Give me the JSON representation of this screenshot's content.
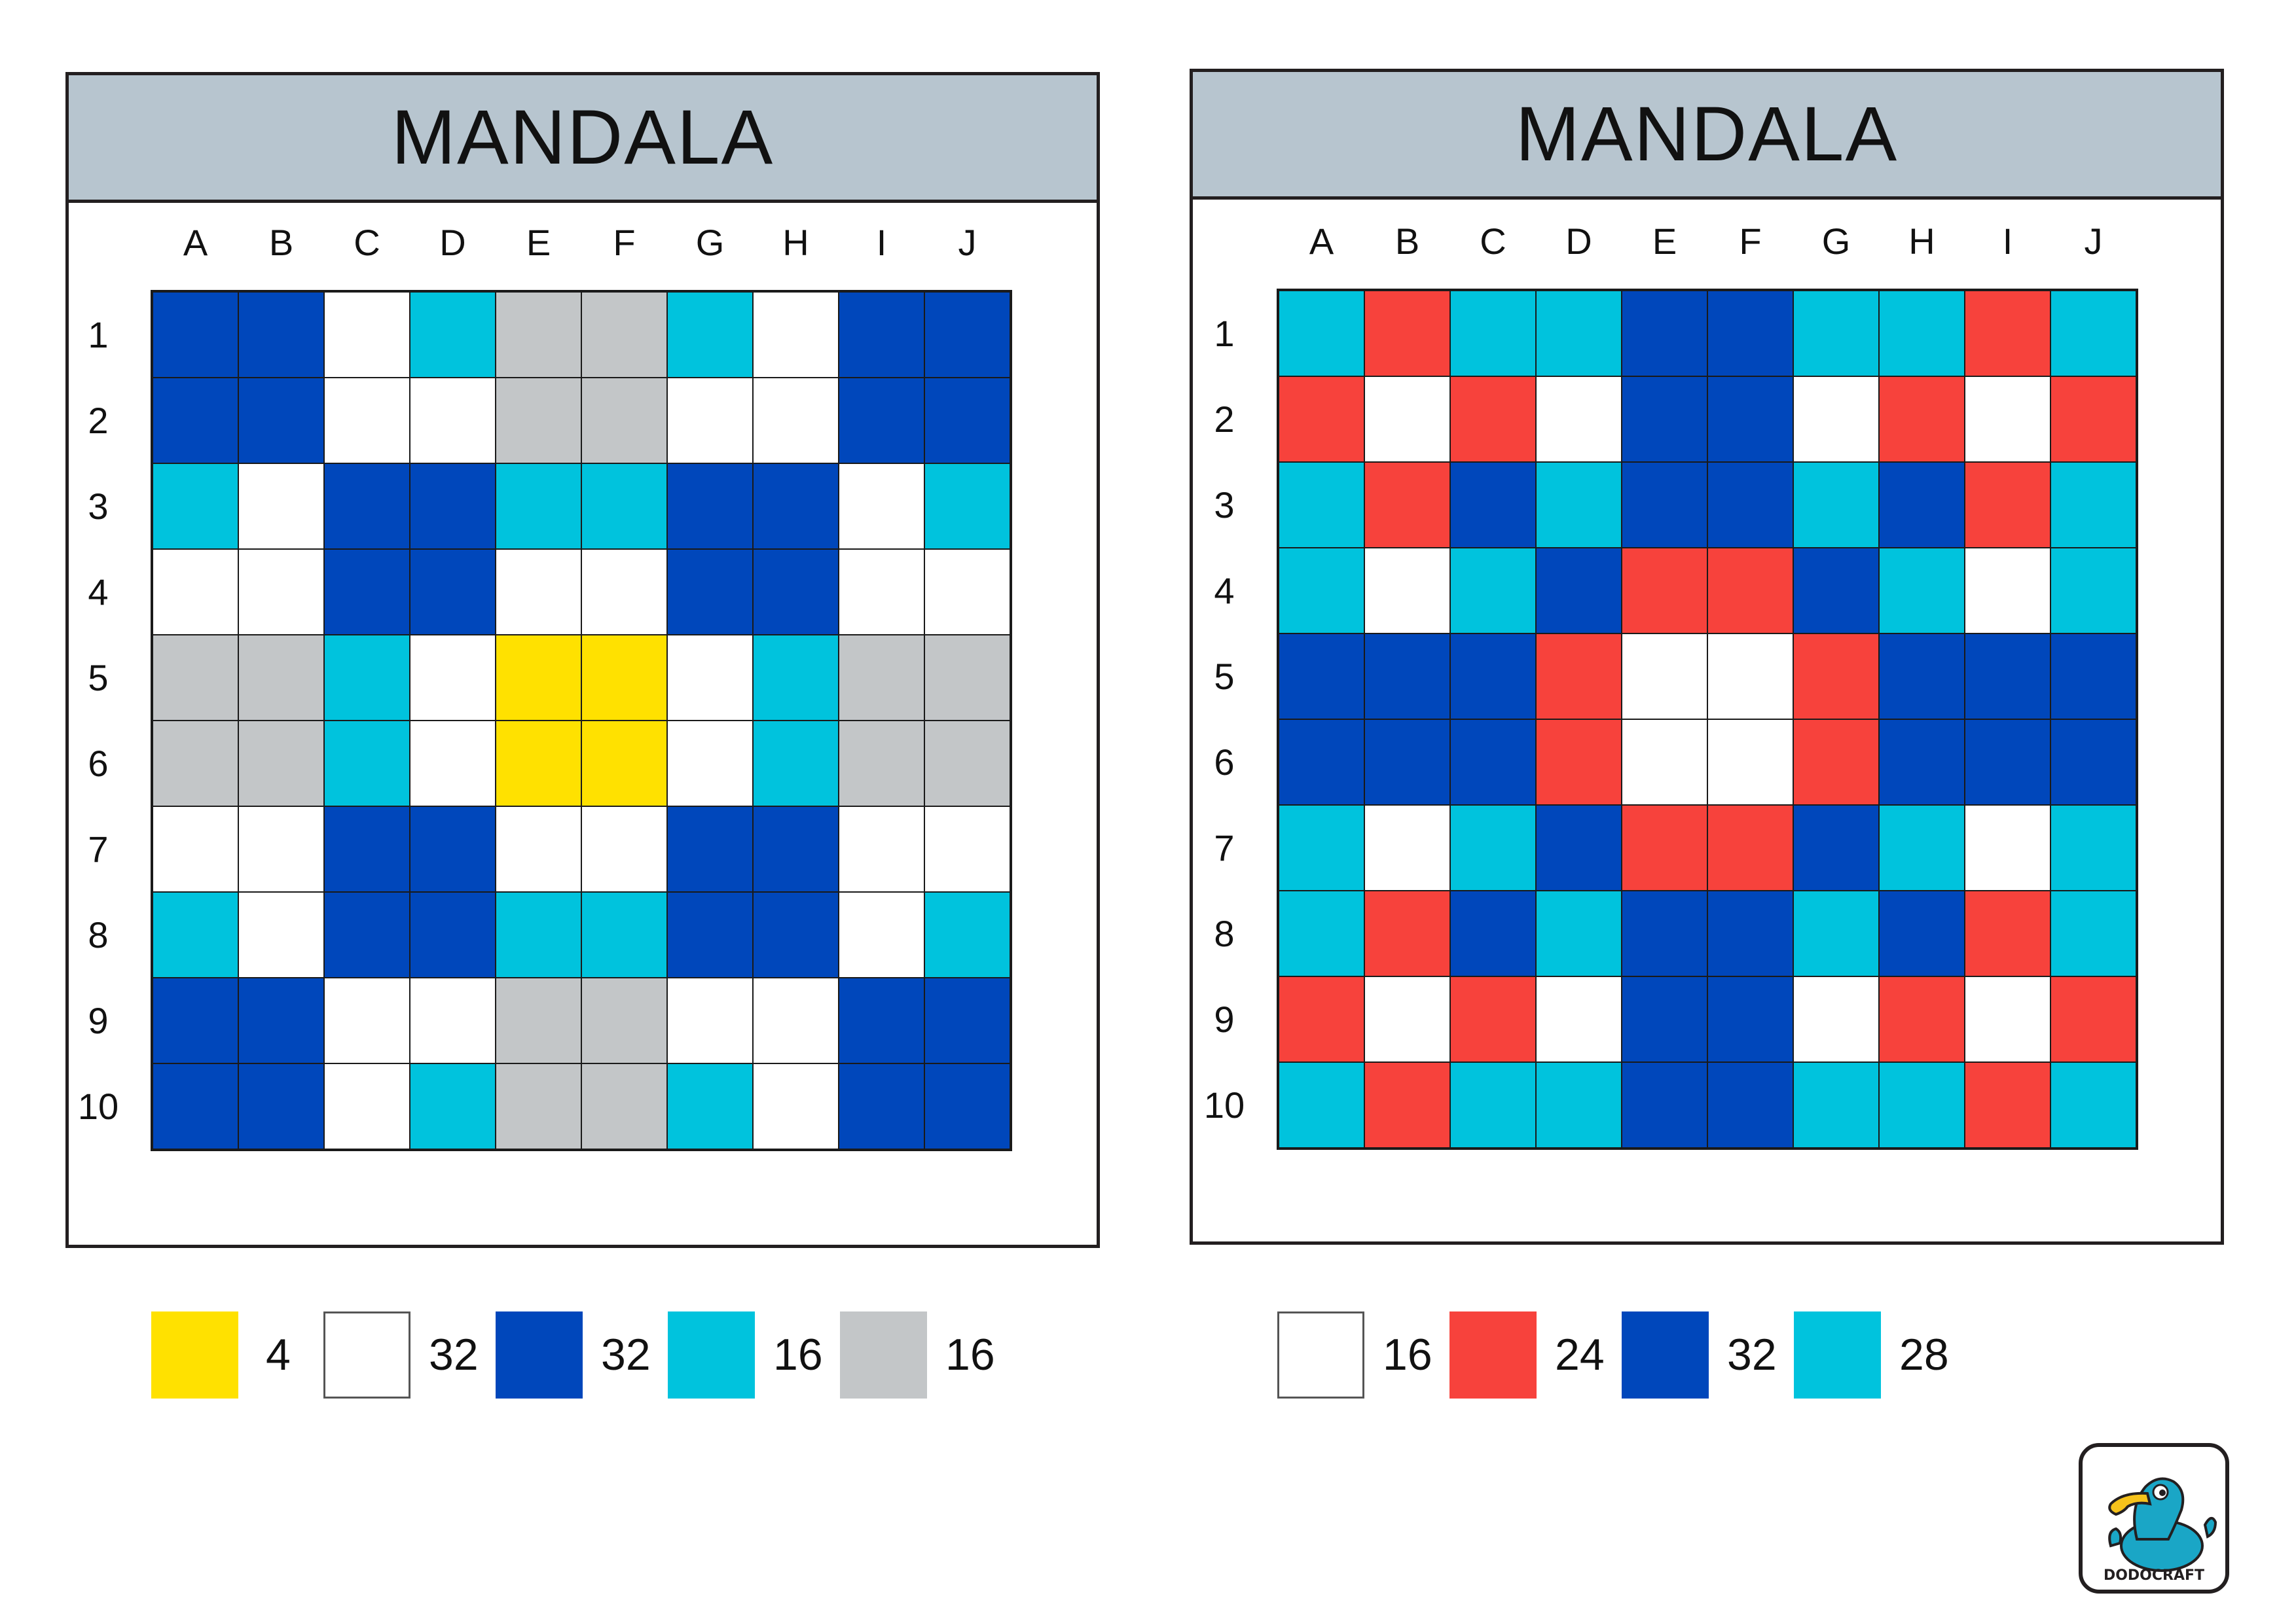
{
  "colors": {
    "Y": "#ffe100",
    "W": "#ffffff",
    "D": "#0047bb",
    "C": "#00c3dd",
    "G": "#c3c6c8",
    "R": "#f7423c"
  },
  "panels": [
    {
      "title": "MANDALA",
      "columns": [
        "A",
        "B",
        "C",
        "D",
        "E",
        "F",
        "G",
        "H",
        "I",
        "J"
      ],
      "rows": [
        "1",
        "2",
        "3",
        "4",
        "5",
        "6",
        "7",
        "8",
        "9",
        "10"
      ],
      "grid": [
        [
          "D",
          "D",
          "W",
          "C",
          "G",
          "G",
          "C",
          "W",
          "D",
          "D"
        ],
        [
          "D",
          "D",
          "W",
          "W",
          "G",
          "G",
          "W",
          "W",
          "D",
          "D"
        ],
        [
          "C",
          "W",
          "D",
          "D",
          "C",
          "C",
          "D",
          "D",
          "W",
          "C"
        ],
        [
          "W",
          "W",
          "D",
          "D",
          "W",
          "W",
          "D",
          "D",
          "W",
          "W"
        ],
        [
          "G",
          "G",
          "C",
          "W",
          "Y",
          "Y",
          "W",
          "C",
          "G",
          "G"
        ],
        [
          "G",
          "G",
          "C",
          "W",
          "Y",
          "Y",
          "W",
          "C",
          "G",
          "G"
        ],
        [
          "W",
          "W",
          "D",
          "D",
          "W",
          "W",
          "D",
          "D",
          "W",
          "W"
        ],
        [
          "C",
          "W",
          "D",
          "D",
          "C",
          "C",
          "D",
          "D",
          "W",
          "C"
        ],
        [
          "D",
          "D",
          "W",
          "W",
          "G",
          "G",
          "W",
          "W",
          "D",
          "D"
        ],
        [
          "D",
          "D",
          "W",
          "C",
          "G",
          "G",
          "C",
          "W",
          "D",
          "D"
        ]
      ],
      "legend": [
        {
          "color": "Y",
          "count": "4"
        },
        {
          "color": "W",
          "count": "32"
        },
        {
          "color": "D",
          "count": "32"
        },
        {
          "color": "C",
          "count": "16"
        },
        {
          "color": "G",
          "count": "16"
        }
      ]
    },
    {
      "title": "MANDALA",
      "columns": [
        "A",
        "B",
        "C",
        "D",
        "E",
        "F",
        "G",
        "H",
        "I",
        "J"
      ],
      "rows": [
        "1",
        "2",
        "3",
        "4",
        "5",
        "6",
        "7",
        "8",
        "9",
        "10"
      ],
      "grid": [
        [
          "C",
          "R",
          "C",
          "C",
          "D",
          "D",
          "C",
          "C",
          "R",
          "C"
        ],
        [
          "R",
          "W",
          "R",
          "W",
          "D",
          "D",
          "W",
          "R",
          "W",
          "R"
        ],
        [
          "C",
          "R",
          "D",
          "C",
          "D",
          "D",
          "C",
          "D",
          "R",
          "C"
        ],
        [
          "C",
          "W",
          "C",
          "D",
          "R",
          "R",
          "D",
          "C",
          "W",
          "C"
        ],
        [
          "D",
          "D",
          "D",
          "R",
          "W",
          "W",
          "R",
          "D",
          "D",
          "D"
        ],
        [
          "D",
          "D",
          "D",
          "R",
          "W",
          "W",
          "R",
          "D",
          "D",
          "D"
        ],
        [
          "C",
          "W",
          "C",
          "D",
          "R",
          "R",
          "D",
          "C",
          "W",
          "C"
        ],
        [
          "C",
          "R",
          "D",
          "C",
          "D",
          "D",
          "C",
          "D",
          "R",
          "C"
        ],
        [
          "R",
          "W",
          "R",
          "W",
          "D",
          "D",
          "W",
          "R",
          "W",
          "R"
        ],
        [
          "C",
          "R",
          "C",
          "C",
          "D",
          "D",
          "C",
          "C",
          "R",
          "C"
        ]
      ],
      "legend": [
        {
          "color": "W",
          "count": "16"
        },
        {
          "color": "R",
          "count": "24"
        },
        {
          "color": "D",
          "count": "32"
        },
        {
          "color": "C",
          "count": "28"
        }
      ]
    }
  ],
  "logo": {
    "text": "DODOCRAFT",
    "icon": "dodo-bird-icon"
  }
}
